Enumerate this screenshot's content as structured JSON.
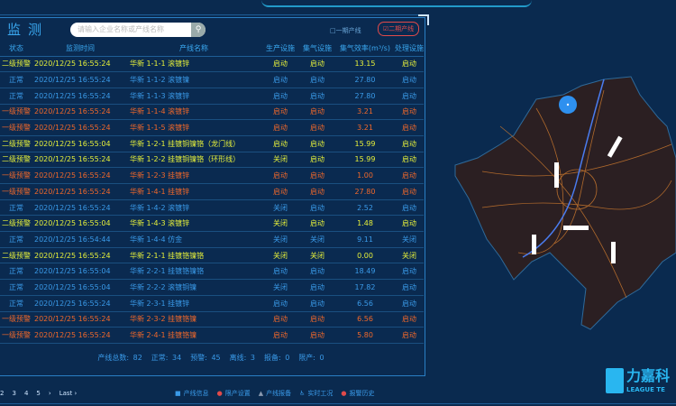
{
  "header": {
    "title": "监测",
    "search_placeholder": "请输入企业名称或产线名称",
    "check1": "□一期产线",
    "check2": "☑二期产线"
  },
  "colors": {
    "warn2": "#e6f03a",
    "warn1": "#f0682a",
    "normal": "#3a9ae8",
    "background": "#0a2a4f"
  },
  "table": {
    "columns": [
      "状态",
      "监测时间",
      "产线名称",
      "生产设施",
      "集气设施",
      "集气效率(m³/s)",
      "处理设施"
    ],
    "rows": [
      {
        "level": "warn2",
        "cells": [
          "二级预警",
          "2020/12/25 16:55:24",
          "华新 1-1-1 滚镀锌",
          "启动",
          "启动",
          "13.15",
          "启动"
        ]
      },
      {
        "level": "normal",
        "cells": [
          "正常",
          "2020/12/25 16:55:24",
          "华新 1-1-2 滚镀镍",
          "启动",
          "启动",
          "27.80",
          "启动"
        ]
      },
      {
        "level": "normal",
        "cells": [
          "正常",
          "2020/12/25 16:55:24",
          "华新 1-1-3 滚镀锌",
          "启动",
          "启动",
          "27.80",
          "启动"
        ]
      },
      {
        "level": "warn1",
        "cells": [
          "一级预警",
          "2020/12/25 16:55:24",
          "华新 1-1-4 滚镀锌",
          "启动",
          "启动",
          "3.21",
          "启动"
        ]
      },
      {
        "level": "warn1",
        "cells": [
          "一级预警",
          "2020/12/25 16:55:24",
          "华新 1-1-5 滚镀锌",
          "启动",
          "启动",
          "3.21",
          "启动"
        ]
      },
      {
        "level": "warn2",
        "cells": [
          "二级预警",
          "2020/12/25 16:55:04",
          "华新 1-2-1 挂镀铜镍铬（龙门线）",
          "启动",
          "启动",
          "15.99",
          "启动"
        ]
      },
      {
        "level": "warn2",
        "cells": [
          "二级预警",
          "2020/12/25 16:55:24",
          "华新 1-2-2 挂镀铜镍铬（环形线）",
          "关闭",
          "启动",
          "15.99",
          "启动"
        ]
      },
      {
        "level": "warn1",
        "cells": [
          "一级预警",
          "2020/12/25 16:55:24",
          "华新 1-2-3 挂镀锌",
          "启动",
          "启动",
          "1.00",
          "启动"
        ]
      },
      {
        "level": "warn1",
        "cells": [
          "一级预警",
          "2020/12/25 16:55:24",
          "华新 1-4-1 挂镀锌",
          "启动",
          "启动",
          "27.80",
          "启动"
        ]
      },
      {
        "level": "normal",
        "cells": [
          "正常",
          "2020/12/25 16:55:24",
          "华新 1-4-2 滚镀锌",
          "关闭",
          "启动",
          "2.52",
          "启动"
        ]
      },
      {
        "level": "warn2",
        "cells": [
          "二级预警",
          "2020/12/25 16:55:04",
          "华新 1-4-3 滚镀锌",
          "关闭",
          "启动",
          "1.48",
          "启动"
        ]
      },
      {
        "level": "normal",
        "cells": [
          "正常",
          "2020/12/25 16:54:44",
          "华新 1-4-4 仿金",
          "关闭",
          "关闭",
          "9.11",
          "关闭"
        ]
      },
      {
        "level": "warn2",
        "cells": [
          "二级预警",
          "2020/12/25 16:55:24",
          "华新 2-1-1 挂镀铬镍铬",
          "关闭",
          "关闭",
          "0.00",
          "关闭"
        ]
      },
      {
        "level": "normal",
        "cells": [
          "正常",
          "2020/12/25 16:55:04",
          "华新 2-2-1 挂镀铬镍铬",
          "启动",
          "启动",
          "18.49",
          "启动"
        ]
      },
      {
        "level": "normal",
        "cells": [
          "正常",
          "2020/12/25 16:55:04",
          "华新 2-2-2 滚镀铜镍",
          "关闭",
          "启动",
          "17.82",
          "启动"
        ]
      },
      {
        "level": "normal",
        "cells": [
          "正常",
          "2020/12/25 16:55:24",
          "华新 2-3-1 挂镀锌",
          "启动",
          "启动",
          "6.56",
          "启动"
        ]
      },
      {
        "level": "warn1",
        "cells": [
          "一级预警",
          "2020/12/25 16:55:24",
          "华新 2-3-2 挂镀铬镍",
          "启动",
          "启动",
          "6.56",
          "启动"
        ]
      },
      {
        "level": "warn1",
        "cells": [
          "一级预警",
          "2020/12/25 16:55:24",
          "华新 2-4-1 挂镀铬镍",
          "启动",
          "启动",
          "5.80",
          "启动"
        ]
      }
    ]
  },
  "summary": [
    "产线总数: 82",
    "正常: 34",
    "预警: 45",
    "离线: 3",
    "报备: 0",
    "限产: 0"
  ],
  "pager": [
    "2",
    "3",
    "4",
    "5",
    "›",
    "Last ›"
  ],
  "legend": [
    {
      "icon": "square-icon",
      "label": "产线信息"
    },
    {
      "icon": "circle-icon",
      "label": "限产设置"
    },
    {
      "icon": "triangle-icon",
      "label": "产线报备"
    },
    {
      "icon": "person-icon",
      "label": "实时工况"
    },
    {
      "icon": "alert-icon",
      "label": "报警历史"
    }
  ],
  "logo": {
    "cn": "力嘉科",
    "en": "LEAGUE TE"
  }
}
